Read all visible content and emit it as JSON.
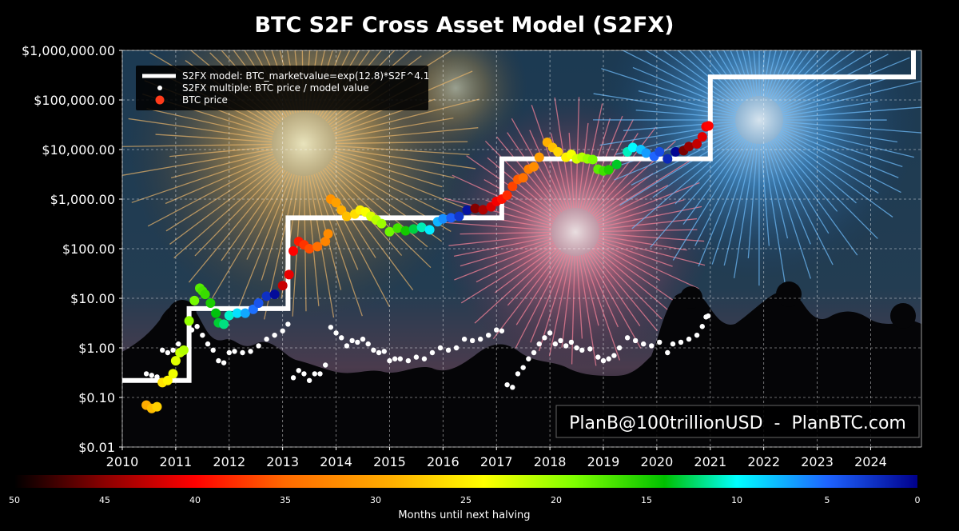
{
  "chart_data": {
    "type": "scatter",
    "title": "BTC S2F Cross Asset Model (S2FX)",
    "watermark": "PlanB@100trillionUSD  -  PlanBTC.com",
    "xlabel": "",
    "ylabel": "",
    "xlim": [
      2010,
      2024.95
    ],
    "ylim": [
      0.01,
      1000000
    ],
    "yscale": "log",
    "grid": true,
    "legend_position": "top-left",
    "x_ticks": [
      2010,
      2011,
      2012,
      2013,
      2014,
      2015,
      2016,
      2017,
      2018,
      2019,
      2020,
      2021,
      2022,
      2023,
      2024
    ],
    "y_ticks": [
      {
        "value": 0.01,
        "label": "$0.01"
      },
      {
        "value": 0.1,
        "label": "$0.10"
      },
      {
        "value": 1,
        "label": "$1.00"
      },
      {
        "value": 10,
        "label": "$10.00"
      },
      {
        "value": 100,
        "label": "$100.00"
      },
      {
        "value": 1000,
        "label": "$1,000.00"
      },
      {
        "value": 10000,
        "label": "$10,000.00"
      },
      {
        "value": 100000,
        "label": "$100,000.00"
      },
      {
        "value": 1000000,
        "label": "$1,000,000.00"
      }
    ],
    "legend": [
      {
        "label": "S2FX model: BTC_marketvalue=exp(12.8)*S2F^4.1",
        "marker": "line",
        "color": "#ffffff"
      },
      {
        "label": "S2FX multiple: BTC price / model value",
        "marker": "small-dot",
        "color": "#ffffff"
      },
      {
        "label": "BTC price",
        "marker": "dot",
        "color": "#ff3b1a"
      }
    ],
    "model_steps": [
      {
        "x": 2010.0,
        "y": 0.22
      },
      {
        "x": 2011.25,
        "y": 0.22
      },
      {
        "x": 2011.25,
        "y": 6.2
      },
      {
        "x": 2013.1,
        "y": 6.2
      },
      {
        "x": 2013.1,
        "y": 420
      },
      {
        "x": 2017.1,
        "y": 420
      },
      {
        "x": 2017.1,
        "y": 6500
      },
      {
        "x": 2021.0,
        "y": 6500
      },
      {
        "x": 2021.0,
        "y": 290000
      },
      {
        "x": 2024.8,
        "y": 290000
      },
      {
        "x": 2024.8,
        "y": 1000000
      }
    ],
    "series": [
      {
        "name": "S2FX multiple: BTC price / model value",
        "points": [
          [
            2010.45,
            0.3
          ],
          [
            2010.55,
            0.28
          ],
          [
            2010.65,
            0.26
          ],
          [
            2010.75,
            0.9
          ],
          [
            2010.85,
            0.8
          ],
          [
            2010.95,
            0.9
          ],
          [
            2011.05,
            1.2
          ],
          [
            2011.15,
            0.8
          ],
          [
            2011.3,
            2.3
          ],
          [
            2011.4,
            2.7
          ],
          [
            2011.5,
            1.8
          ],
          [
            2011.6,
            1.2
          ],
          [
            2011.7,
            0.9
          ],
          [
            2011.8,
            0.55
          ],
          [
            2011.9,
            0.5
          ],
          [
            2012.0,
            0.8
          ],
          [
            2012.1,
            0.85
          ],
          [
            2012.25,
            0.8
          ],
          [
            2012.4,
            0.85
          ],
          [
            2012.55,
            1.1
          ],
          [
            2012.7,
            1.5
          ],
          [
            2012.85,
            1.8
          ],
          [
            2013.0,
            2.2
          ],
          [
            2013.1,
            3.0
          ],
          [
            2013.2,
            0.25
          ],
          [
            2013.3,
            0.35
          ],
          [
            2013.4,
            0.3
          ],
          [
            2013.5,
            0.22
          ],
          [
            2013.6,
            0.3
          ],
          [
            2013.7,
            0.3
          ],
          [
            2013.8,
            0.45
          ],
          [
            2013.9,
            2.6
          ],
          [
            2014.0,
            2.0
          ],
          [
            2014.1,
            1.6
          ],
          [
            2014.2,
            1.1
          ],
          [
            2014.3,
            1.4
          ],
          [
            2014.4,
            1.3
          ],
          [
            2014.5,
            1.5
          ],
          [
            2014.6,
            1.2
          ],
          [
            2014.7,
            0.9
          ],
          [
            2014.8,
            0.8
          ],
          [
            2014.9,
            0.85
          ],
          [
            2015.0,
            0.55
          ],
          [
            2015.1,
            0.6
          ],
          [
            2015.2,
            0.6
          ],
          [
            2015.35,
            0.55
          ],
          [
            2015.5,
            0.65
          ],
          [
            2015.65,
            0.6
          ],
          [
            2015.8,
            0.8
          ],
          [
            2015.95,
            1.0
          ],
          [
            2016.1,
            0.9
          ],
          [
            2016.25,
            1.0
          ],
          [
            2016.4,
            1.5
          ],
          [
            2016.55,
            1.4
          ],
          [
            2016.7,
            1.5
          ],
          [
            2016.85,
            1.8
          ],
          [
            2017.0,
            2.3
          ],
          [
            2017.1,
            2.2
          ],
          [
            2017.2,
            0.18
          ],
          [
            2017.3,
            0.16
          ],
          [
            2017.4,
            0.3
          ],
          [
            2017.5,
            0.4
          ],
          [
            2017.6,
            0.6
          ],
          [
            2017.7,
            0.8
          ],
          [
            2017.8,
            1.2
          ],
          [
            2017.9,
            1.6
          ],
          [
            2018.0,
            2.0
          ],
          [
            2018.1,
            1.2
          ],
          [
            2018.2,
            1.4
          ],
          [
            2018.3,
            1.1
          ],
          [
            2018.4,
            1.3
          ],
          [
            2018.5,
            1.0
          ],
          [
            2018.6,
            0.9
          ],
          [
            2018.75,
            0.95
          ],
          [
            2018.9,
            0.65
          ],
          [
            2019.0,
            0.55
          ],
          [
            2019.1,
            0.6
          ],
          [
            2019.2,
            0.7
          ],
          [
            2019.3,
            1.0
          ],
          [
            2019.45,
            1.6
          ],
          [
            2019.6,
            1.4
          ],
          [
            2019.75,
            1.2
          ],
          [
            2019.9,
            1.1
          ],
          [
            2020.05,
            1.3
          ],
          [
            2020.2,
            0.8
          ],
          [
            2020.3,
            1.2
          ],
          [
            2020.45,
            1.3
          ],
          [
            2020.6,
            1.5
          ],
          [
            2020.75,
            1.8
          ],
          [
            2020.85,
            2.7
          ],
          [
            2020.92,
            4.2
          ],
          [
            2020.96,
            4.4
          ]
        ]
      },
      {
        "name": "BTC price",
        "points": [
          [
            2010.45,
            0.07
          ],
          [
            2010.55,
            0.06
          ],
          [
            2010.65,
            0.065
          ],
          [
            2010.75,
            0.2
          ],
          [
            2010.85,
            0.22
          ],
          [
            2010.95,
            0.3
          ],
          [
            2011.0,
            0.55
          ],
          [
            2011.08,
            0.8
          ],
          [
            2011.15,
            0.9
          ],
          [
            2011.25,
            3.5
          ],
          [
            2011.35,
            9
          ],
          [
            2011.45,
            16
          ],
          [
            2011.5,
            14
          ],
          [
            2011.55,
            12
          ],
          [
            2011.65,
            8
          ],
          [
            2011.75,
            5
          ],
          [
            2011.8,
            3.2
          ],
          [
            2011.9,
            3
          ],
          [
            2012.0,
            4.5
          ],
          [
            2012.15,
            5
          ],
          [
            2012.3,
            5
          ],
          [
            2012.45,
            6
          ],
          [
            2012.55,
            8
          ],
          [
            2012.7,
            11
          ],
          [
            2012.85,
            12
          ],
          [
            2013.0,
            18
          ],
          [
            2013.12,
            30
          ],
          [
            2013.2,
            90
          ],
          [
            2013.3,
            140
          ],
          [
            2013.4,
            120
          ],
          [
            2013.5,
            100
          ],
          [
            2013.65,
            110
          ],
          [
            2013.8,
            140
          ],
          [
            2013.85,
            200
          ],
          [
            2013.9,
            1000
          ],
          [
            2014.0,
            850
          ],
          [
            2014.1,
            600
          ],
          [
            2014.2,
            450
          ],
          [
            2014.35,
            500
          ],
          [
            2014.45,
            600
          ],
          [
            2014.55,
            550
          ],
          [
            2014.65,
            450
          ],
          [
            2014.75,
            380
          ],
          [
            2014.85,
            320
          ],
          [
            2015.0,
            220
          ],
          [
            2015.15,
            260
          ],
          [
            2015.3,
            230
          ],
          [
            2015.45,
            250
          ],
          [
            2015.6,
            270
          ],
          [
            2015.75,
            240
          ],
          [
            2015.9,
            350
          ],
          [
            2016.0,
            400
          ],
          [
            2016.15,
            420
          ],
          [
            2016.3,
            450
          ],
          [
            2016.45,
            600
          ],
          [
            2016.6,
            650
          ],
          [
            2016.75,
            610
          ],
          [
            2016.9,
            700
          ],
          [
            2017.0,
            900
          ],
          [
            2017.1,
            1000
          ],
          [
            2017.2,
            1200
          ],
          [
            2017.3,
            1800
          ],
          [
            2017.4,
            2500
          ],
          [
            2017.5,
            2700
          ],
          [
            2017.6,
            4000
          ],
          [
            2017.7,
            4500
          ],
          [
            2017.8,
            7000
          ],
          [
            2017.95,
            14000
          ],
          [
            2018.05,
            11000
          ],
          [
            2018.15,
            9000
          ],
          [
            2018.3,
            7000
          ],
          [
            2018.4,
            8000
          ],
          [
            2018.5,
            6500
          ],
          [
            2018.6,
            7000
          ],
          [
            2018.7,
            6500
          ],
          [
            2018.8,
            6300
          ],
          [
            2018.9,
            4000
          ],
          [
            2019.0,
            3700
          ],
          [
            2019.1,
            3900
          ],
          [
            2019.25,
            5000
          ],
          [
            2019.45,
            9000
          ],
          [
            2019.55,
            11000
          ],
          [
            2019.7,
            10000
          ],
          [
            2019.8,
            8500
          ],
          [
            2019.95,
            7300
          ],
          [
            2020.05,
            9000
          ],
          [
            2020.2,
            6500
          ],
          [
            2020.35,
            9000
          ],
          [
            2020.5,
            9500
          ],
          [
            2020.6,
            11500
          ],
          [
            2020.75,
            13000
          ],
          [
            2020.85,
            18000
          ],
          [
            2020.92,
            29000
          ],
          [
            2020.97,
            30000
          ]
        ]
      }
    ],
    "colorbar": {
      "label": "Months until next halving",
      "ticks": [
        50,
        45,
        40,
        35,
        30,
        25,
        20,
        15,
        10,
        5,
        0
      ]
    }
  }
}
